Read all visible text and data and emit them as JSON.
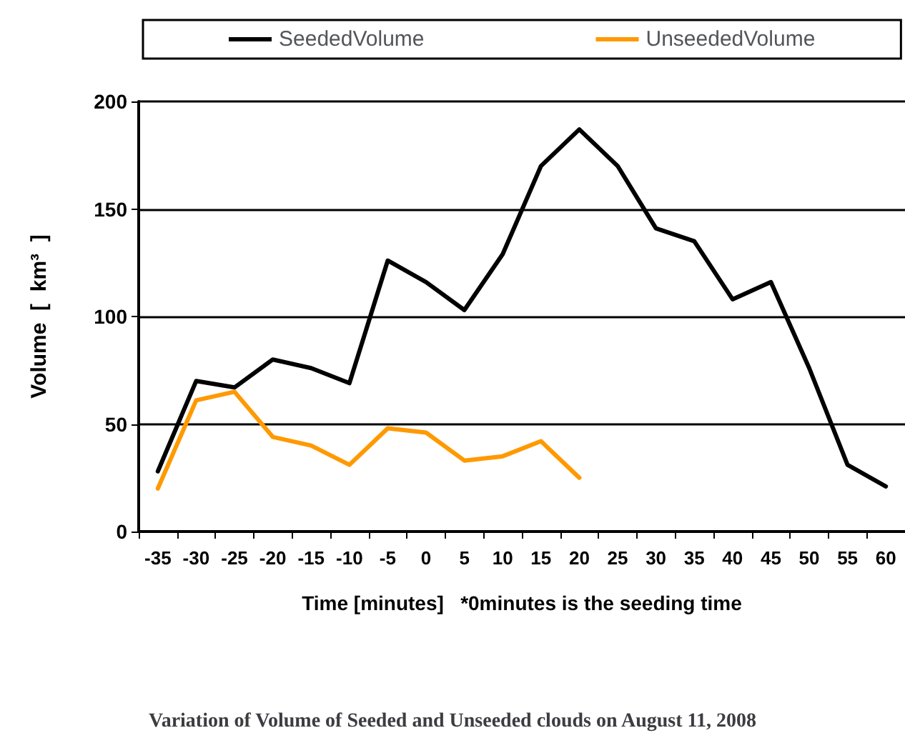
{
  "chart_data": {
    "type": "line",
    "title": "Variation of Volume of Seeded and Unseeded clouds on August 11, 2008",
    "xlabel": "Time [minutes]   *0minutes is the seeding time",
    "ylabel": "Volume  [  km³  ]",
    "categories": [
      "-35",
      "-30",
      "-25",
      "-20",
      "-15",
      "-10",
      "-5",
      "0",
      "5",
      "10",
      "15",
      "20",
      "25",
      "30",
      "35",
      "40",
      "45",
      "50",
      "55",
      "60"
    ],
    "series": [
      {
        "name": "SeededVolume",
        "color": "#000000",
        "values": [
          28,
          70,
          67,
          80,
          76,
          69,
          126,
          116,
          103,
          129,
          170,
          187,
          170,
          141,
          135,
          108,
          116,
          76,
          31,
          21
        ]
      },
      {
        "name": "UnseededVolume",
        "color": "#ff9900",
        "values": [
          20,
          61,
          65,
          44,
          40,
          31,
          48,
          46,
          33,
          35,
          42,
          25,
          null,
          null,
          null,
          null,
          null,
          null,
          null,
          null
        ]
      }
    ],
    "ylim": [
      0,
      200
    ],
    "yticks": [
      0,
      50,
      100,
      150,
      200
    ],
    "grid": "y",
    "legend": "top",
    "marker": "none",
    "line_style": "solid"
  }
}
